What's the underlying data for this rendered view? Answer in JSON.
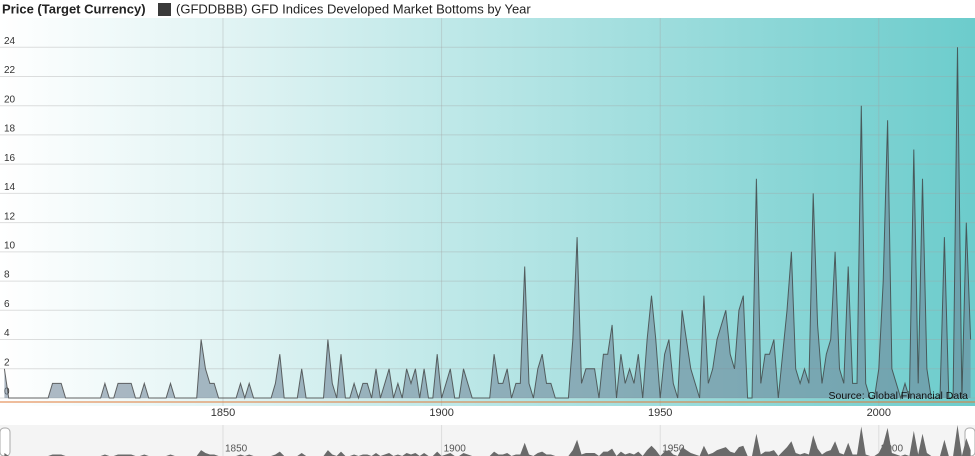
{
  "chart_data": {
    "type": "area",
    "title": "Price (Target Currency)",
    "annotation": "Source: Global Financial Data",
    "xlim": [
      1799,
      2022
    ],
    "xticks": [
      1850,
      1900,
      1950,
      2000
    ],
    "ylim": [
      0,
      26
    ],
    "yticks": [
      0,
      2,
      4,
      6,
      8,
      10,
      12,
      14,
      16,
      18,
      20,
      22,
      24
    ],
    "grid": true,
    "x": [
      1800,
      1801,
      1802,
      1803,
      1804,
      1805,
      1806,
      1807,
      1808,
      1809,
      1810,
      1811,
      1812,
      1813,
      1814,
      1815,
      1816,
      1817,
      1818,
      1819,
      1820,
      1821,
      1822,
      1823,
      1824,
      1825,
      1826,
      1827,
      1828,
      1829,
      1830,
      1831,
      1832,
      1833,
      1834,
      1835,
      1836,
      1837,
      1838,
      1839,
      1840,
      1841,
      1842,
      1843,
      1844,
      1845,
      1846,
      1847,
      1848,
      1849,
      1850,
      1851,
      1852,
      1853,
      1854,
      1855,
      1856,
      1857,
      1858,
      1859,
      1860,
      1861,
      1862,
      1863,
      1864,
      1865,
      1866,
      1867,
      1868,
      1869,
      1870,
      1871,
      1872,
      1873,
      1874,
      1875,
      1876,
      1877,
      1878,
      1879,
      1880,
      1881,
      1882,
      1883,
      1884,
      1885,
      1886,
      1887,
      1888,
      1889,
      1890,
      1891,
      1892,
      1893,
      1894,
      1895,
      1896,
      1897,
      1898,
      1899,
      1900,
      1901,
      1902,
      1903,
      1904,
      1905,
      1906,
      1907,
      1908,
      1909,
      1910,
      1911,
      1912,
      1913,
      1914,
      1915,
      1916,
      1917,
      1918,
      1919,
      1920,
      1921,
      1922,
      1923,
      1924,
      1925,
      1926,
      1927,
      1928,
      1929,
      1930,
      1931,
      1932,
      1933,
      1934,
      1935,
      1936,
      1937,
      1938,
      1939,
      1940,
      1941,
      1942,
      1943,
      1944,
      1945,
      1946,
      1947,
      1948,
      1949,
      1950,
      1951,
      1952,
      1953,
      1954,
      1955,
      1956,
      1957,
      1958,
      1959,
      1960,
      1961,
      1962,
      1963,
      1964,
      1965,
      1966,
      1967,
      1968,
      1969,
      1970,
      1971,
      1972,
      1973,
      1974,
      1975,
      1976,
      1977,
      1978,
      1979,
      1980,
      1981,
      1982,
      1983,
      1984,
      1985,
      1986,
      1987,
      1988,
      1989,
      1990,
      1991,
      1992,
      1993,
      1994,
      1995,
      1996,
      1997,
      1998,
      1999,
      2000,
      2001,
      2002,
      2003,
      2004,
      2005,
      2006,
      2007,
      2008,
      2009,
      2010,
      2011,
      2012,
      2013,
      2014,
      2015,
      2016,
      2017,
      2018,
      2019,
      2020,
      2021
    ],
    "series": [
      {
        "name": "(GFDDBBB) GFD Indices Developed Market Bottoms by Year",
        "color": "#3a3a3a",
        "values": [
          2,
          0,
          0,
          0,
          0,
          0,
          0,
          0,
          0,
          0,
          0,
          1,
          1,
          1,
          0,
          0,
          0,
          0,
          0,
          0,
          0,
          0,
          0,
          1,
          0,
          0,
          1,
          1,
          1,
          1,
          0,
          0,
          1,
          0,
          0,
          0,
          0,
          0,
          1,
          0,
          0,
          0,
          0,
          0,
          0,
          4,
          2,
          1,
          1,
          0,
          0,
          0,
          0,
          0,
          1,
          0,
          1,
          0,
          0,
          0,
          0,
          0,
          1,
          3,
          0,
          0,
          0,
          0,
          2,
          0,
          0,
          0,
          0,
          0,
          4,
          1,
          0,
          3,
          0,
          0,
          1,
          0,
          1,
          1,
          0,
          2,
          0,
          1,
          2,
          0,
          1,
          0,
          2,
          1,
          2,
          0,
          2,
          0,
          0,
          3,
          0,
          1,
          2,
          0,
          0,
          2,
          1,
          0,
          0,
          0,
          0,
          0,
          3,
          1,
          1,
          2,
          0,
          1,
          1,
          9,
          1,
          0,
          2,
          3,
          1,
          1,
          0,
          0,
          0,
          0,
          4,
          11,
          1,
          2,
          2,
          2,
          0,
          3,
          3,
          5,
          0,
          3,
          1,
          2,
          1,
          3,
          0,
          4,
          7,
          4,
          0,
          3,
          4,
          1,
          0,
          6,
          4,
          2,
          1,
          0,
          7,
          1,
          2,
          4,
          5,
          6,
          3,
          2,
          6,
          7,
          0,
          0,
          15,
          1,
          3,
          3,
          4,
          0,
          3,
          6,
          10,
          2,
          1,
          2,
          1,
          14,
          5,
          1,
          3,
          4,
          10,
          2,
          1,
          9,
          1,
          1,
          20,
          1,
          0,
          0,
          2,
          8,
          19,
          2,
          1,
          0,
          1,
          0,
          17,
          1,
          15,
          2,
          0,
          0,
          0,
          11,
          0,
          0,
          24,
          0,
          12,
          4
        ]
      }
    ]
  }
}
